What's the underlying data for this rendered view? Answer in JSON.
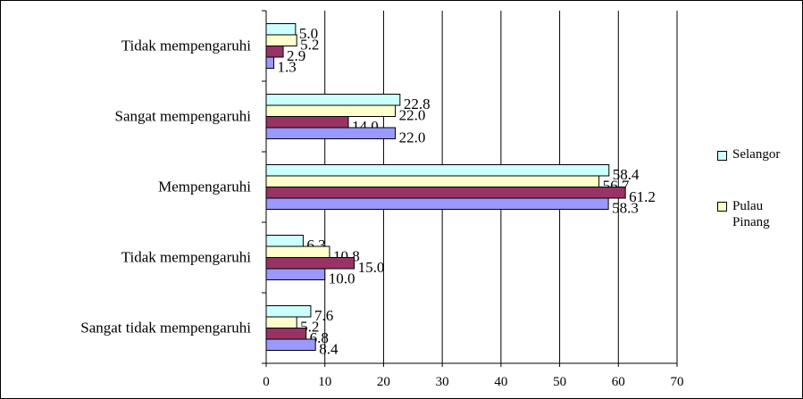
{
  "chart_data": {
    "type": "bar",
    "orientation": "horizontal",
    "categories": [
      "Sangat tidak mempengaruhi",
      "Tidak mempengaruhi",
      "Mempengaruhi",
      "Sangat mempengaruhi",
      "Tidak mempengaruhi"
    ],
    "series": [
      {
        "name": "Selangor",
        "color": "#ccffff",
        "values": [
          7.6,
          6.3,
          58.4,
          22.8,
          5.0
        ]
      },
      {
        "name": "Pulau Pinang",
        "color": "#ffffcc",
        "values": [
          5.2,
          10.8,
          56.7,
          22.0,
          5.2
        ]
      },
      {
        "name": "",
        "color": "#993366",
        "values": [
          6.8,
          15.0,
          61.2,
          14.0,
          2.9
        ]
      },
      {
        "name": "",
        "color": "#9999ff",
        "values": [
          8.4,
          10.0,
          58.3,
          22.0,
          1.3
        ]
      }
    ],
    "value_labels": [
      [
        "7.6",
        "6.3",
        "58.4",
        "22.8",
        "5.0"
      ],
      [
        "5.2",
        "10.8",
        "56.7",
        "22.0",
        "5.2"
      ],
      [
        "6.8",
        "15.0",
        "61.2",
        "14.0",
        "2.9"
      ],
      [
        "8.4",
        "10.0",
        "58.3",
        "22.0",
        "1.3"
      ]
    ],
    "xticks": [
      "0",
      "10",
      "20",
      "30",
      "40",
      "50",
      "60",
      "70"
    ],
    "xlim": [
      0,
      70
    ],
    "grid": true,
    "legend_position": "right",
    "legend_entries": [
      "Selangor",
      "Pulau",
      "Pinang"
    ]
  }
}
